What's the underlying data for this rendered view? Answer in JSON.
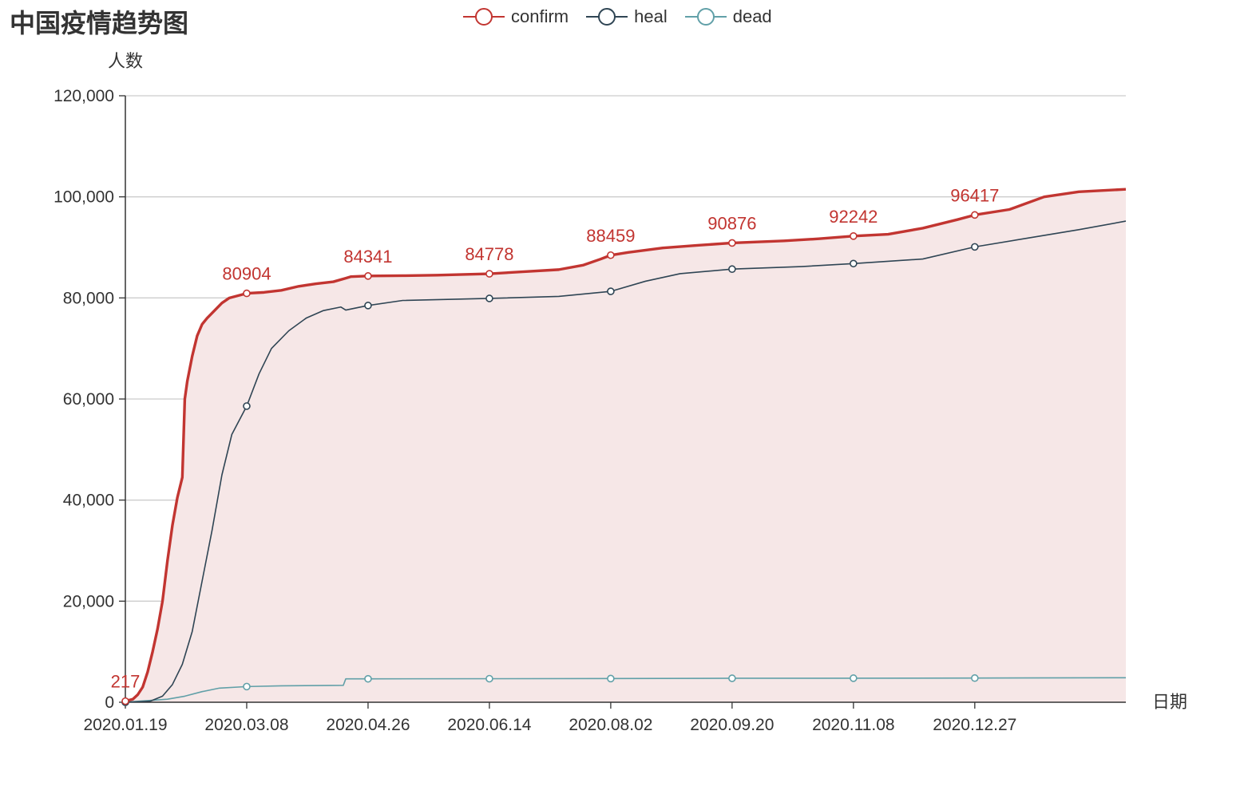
{
  "chart_data": {
    "type": "line",
    "title": "中国疫情趋势图",
    "xlabel": "日期",
    "ylabel": "人数",
    "ylim": [
      0,
      120000
    ],
    "yticks": [
      0,
      20000,
      40000,
      60000,
      80000,
      100000,
      120000
    ],
    "ytick_labels": [
      "0",
      "20,000",
      "40,000",
      "60,000",
      "80,000",
      "100,000",
      "120,000"
    ],
    "xlim": [
      "2020-01-19",
      "2021-02-26"
    ],
    "xticks": [
      "2020-01-19",
      "2020-03-08",
      "2020-04-26",
      "2020-06-14",
      "2020-08-02",
      "2020-09-20",
      "2020-11-08",
      "2020-12-27"
    ],
    "xtick_labels": [
      "2020.01.19",
      "2020.03.08",
      "2020.04.26",
      "2020.06.14",
      "2020.08.02",
      "2020.09.20",
      "2020.11.08",
      "2020.12.27"
    ],
    "grid": true,
    "legend_position": "top-center",
    "colors": {
      "confirm": "#c23531",
      "heal": "#2f4554",
      "dead": "#61a0a8",
      "area": "#f6e7e7"
    },
    "series": [
      {
        "name": "confirm",
        "area": true,
        "points": [
          [
            "2020-01-19",
            217
          ],
          [
            "2020-01-22",
            600
          ],
          [
            "2020-01-24",
            1500
          ],
          [
            "2020-01-26",
            3000
          ],
          [
            "2020-01-28",
            6000
          ],
          [
            "2020-01-30",
            10000
          ],
          [
            "2020-02-01",
            14500
          ],
          [
            "2020-02-03",
            20000
          ],
          [
            "2020-02-05",
            28000
          ],
          [
            "2020-02-07",
            35000
          ],
          [
            "2020-02-09",
            40500
          ],
          [
            "2020-02-11",
            44500
          ],
          [
            "2020-02-12",
            60000
          ],
          [
            "2020-02-13",
            63500
          ],
          [
            "2020-02-15",
            68500
          ],
          [
            "2020-02-17",
            72500
          ],
          [
            "2020-02-19",
            74800
          ],
          [
            "2020-02-21",
            76000
          ],
          [
            "2020-02-24",
            77500
          ],
          [
            "2020-02-27",
            79000
          ],
          [
            "2020-03-01",
            80000
          ],
          [
            "2020-03-08",
            80904
          ],
          [
            "2020-03-15",
            81100
          ],
          [
            "2020-03-22",
            81500
          ],
          [
            "2020-03-29",
            82300
          ],
          [
            "2020-04-05",
            82800
          ],
          [
            "2020-04-12",
            83200
          ],
          [
            "2020-04-17",
            83900
          ],
          [
            "2020-04-19",
            84200
          ],
          [
            "2020-04-26",
            84341
          ],
          [
            "2020-05-10",
            84400
          ],
          [
            "2020-05-24",
            84500
          ],
          [
            "2020-06-14",
            84778
          ],
          [
            "2020-06-28",
            85200
          ],
          [
            "2020-07-12",
            85600
          ],
          [
            "2020-07-22",
            86500
          ],
          [
            "2020-07-29",
            87700
          ],
          [
            "2020-08-02",
            88459
          ],
          [
            "2020-08-09",
            89000
          ],
          [
            "2020-08-23",
            89900
          ],
          [
            "2020-09-06",
            90400
          ],
          [
            "2020-09-20",
            90876
          ],
          [
            "2020-10-11",
            91300
          ],
          [
            "2020-10-25",
            91700
          ],
          [
            "2020-11-08",
            92242
          ],
          [
            "2020-11-22",
            92600
          ],
          [
            "2020-12-06",
            93800
          ],
          [
            "2020-12-20",
            95500
          ],
          [
            "2020-12-27",
            96417
          ],
          [
            "2021-01-10",
            97500
          ],
          [
            "2021-01-24",
            100000
          ],
          [
            "2021-02-07",
            101000
          ],
          [
            "2021-02-26",
            101500
          ]
        ],
        "labels": [
          [
            "2020-01-19",
            "217"
          ],
          [
            "2020-03-08",
            "80904"
          ],
          [
            "2020-04-26",
            "84341"
          ],
          [
            "2020-06-14",
            "84778"
          ],
          [
            "2020-08-02",
            "88459"
          ],
          [
            "2020-09-20",
            "90876"
          ],
          [
            "2020-11-08",
            "92242"
          ],
          [
            "2020-12-27",
            "96417"
          ]
        ]
      },
      {
        "name": "heal",
        "area": false,
        "points": [
          [
            "2020-01-19",
            0
          ],
          [
            "2020-01-29",
            200
          ],
          [
            "2020-02-03",
            1200
          ],
          [
            "2020-02-07",
            3500
          ],
          [
            "2020-02-11",
            7500
          ],
          [
            "2020-02-15",
            14000
          ],
          [
            "2020-02-19",
            24000
          ],
          [
            "2020-02-23",
            34000
          ],
          [
            "2020-02-27",
            45000
          ],
          [
            "2020-03-02",
            53000
          ],
          [
            "2020-03-08",
            58600
          ],
          [
            "2020-03-13",
            65000
          ],
          [
            "2020-03-18",
            70000
          ],
          [
            "2020-03-25",
            73500
          ],
          [
            "2020-04-01",
            76000
          ],
          [
            "2020-04-08",
            77500
          ],
          [
            "2020-04-15",
            78200
          ],
          [
            "2020-04-17",
            77600
          ],
          [
            "2020-04-26",
            78500
          ],
          [
            "2020-05-10",
            79500
          ],
          [
            "2020-06-14",
            79900
          ],
          [
            "2020-07-12",
            80300
          ],
          [
            "2020-08-02",
            81300
          ],
          [
            "2020-08-16",
            83300
          ],
          [
            "2020-08-30",
            84800
          ],
          [
            "2020-09-20",
            85700
          ],
          [
            "2020-10-18",
            86200
          ],
          [
            "2020-11-08",
            86800
          ],
          [
            "2020-12-06",
            87700
          ],
          [
            "2020-12-27",
            90100
          ],
          [
            "2021-01-17",
            91800
          ],
          [
            "2021-02-07",
            93500
          ],
          [
            "2021-02-26",
            95200
          ]
        ]
      },
      {
        "name": "dead",
        "area": false,
        "points": [
          [
            "2020-01-19",
            6
          ],
          [
            "2020-02-05",
            600
          ],
          [
            "2020-02-12",
            1200
          ],
          [
            "2020-02-19",
            2100
          ],
          [
            "2020-02-26",
            2800
          ],
          [
            "2020-03-08",
            3100
          ],
          [
            "2020-03-22",
            3250
          ],
          [
            "2020-04-16",
            3340
          ],
          [
            "2020-04-17",
            4630
          ],
          [
            "2020-04-26",
            4632
          ],
          [
            "2020-08-02",
            4680
          ],
          [
            "2020-09-20",
            4740
          ],
          [
            "2020-12-27",
            4780
          ],
          [
            "2021-02-26",
            4850
          ]
        ]
      }
    ]
  }
}
